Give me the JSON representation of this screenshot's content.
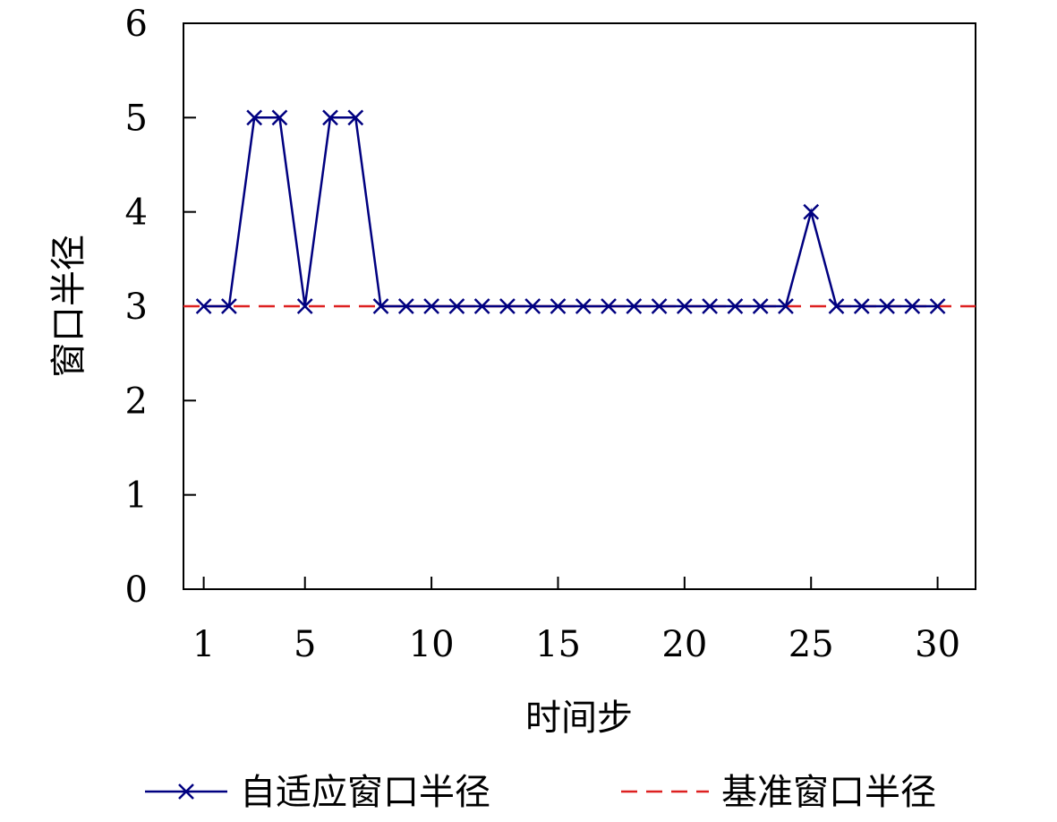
{
  "chart_data": {
    "type": "line",
    "title": "",
    "xlabel": "时间步",
    "ylabel": "窗口半径",
    "xlim": [
      0.2,
      31.5
    ],
    "ylim": [
      0,
      6
    ],
    "xticks": [
      1,
      5,
      10,
      15,
      20,
      25,
      30
    ],
    "yticks": [
      0,
      1,
      2,
      3,
      4,
      5,
      6
    ],
    "grid": false,
    "legend_position": "bottom",
    "series": [
      {
        "name": "自适应窗口半径",
        "color": "#000080",
        "style": "solid",
        "marker": "x",
        "x": [
          1,
          2,
          3,
          4,
          5,
          6,
          7,
          8,
          9,
          10,
          11,
          12,
          13,
          14,
          15,
          16,
          17,
          18,
          19,
          20,
          21,
          22,
          23,
          24,
          25,
          26,
          27,
          28,
          29,
          30
        ],
        "y": [
          3,
          3,
          5,
          5,
          3,
          5,
          5,
          3,
          3,
          3,
          3,
          3,
          3,
          3,
          3,
          3,
          3,
          3,
          3,
          3,
          3,
          3,
          3,
          3,
          4,
          3,
          3,
          3,
          3,
          3
        ]
      },
      {
        "name": "基准窗口半径",
        "color": "#dd2020",
        "style": "dashed",
        "marker": "none",
        "y_constant": 3
      }
    ]
  }
}
